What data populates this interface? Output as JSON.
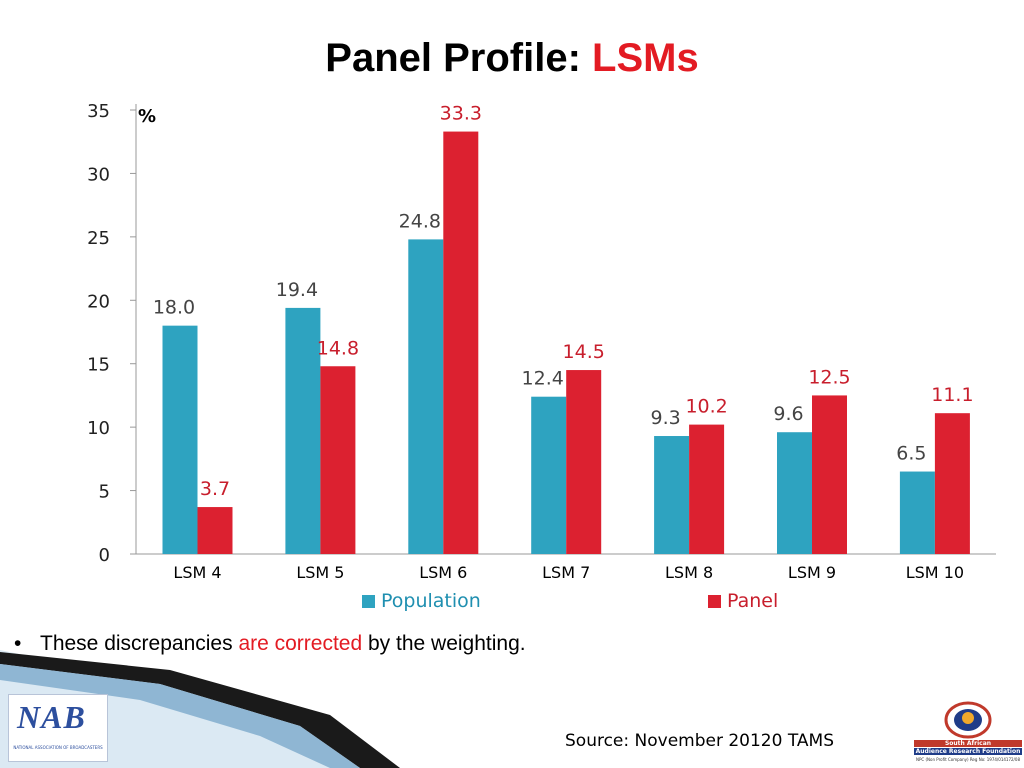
{
  "title": {
    "main": "Panel Profile: ",
    "accent": "LSMs"
  },
  "chart_data": {
    "type": "bar",
    "unit_label": "%",
    "categories": [
      "LSM 4",
      "LSM 5",
      "LSM 6",
      "LSM 7",
      "LSM 8",
      "LSM 9",
      "LSM 10"
    ],
    "series": [
      {
        "name": "Population",
        "color": "#2ea3c0",
        "values": [
          18.0,
          19.4,
          24.8,
          12.4,
          9.3,
          9.6,
          6.5
        ],
        "labels": [
          "18.0",
          "19.4",
          "24.8",
          "12.4",
          "9.3",
          "9.6",
          "6.5"
        ]
      },
      {
        "name": "Panel",
        "color": "#dc2130",
        "values": [
          3.7,
          14.8,
          33.3,
          14.5,
          10.2,
          12.5,
          11.1
        ],
        "labels": [
          "3.7",
          "14.8",
          "33.3",
          "14.5",
          "10.2",
          "12.5",
          "11.1"
        ]
      }
    ],
    "ylim": [
      0,
      35
    ],
    "yticks": [
      "0",
      "5",
      "10",
      "15",
      "20",
      "25",
      "30",
      "35"
    ],
    "grid": false,
    "legend_position": "bottom"
  },
  "legend": {
    "population": "Population",
    "panel": "Panel"
  },
  "bullet": {
    "before": "These discrepancies ",
    "highlight": "are corrected",
    "after": " by the weighting."
  },
  "source": "Source: November 20120 TAMS",
  "logos": {
    "nab_mark": "NAB",
    "nab_text": "NATIONAL ASSOCIATION OF BROADCASTERS",
    "saarf_line1": "South African",
    "saarf_line2": "Audience Research Foundation",
    "saarf_line3": "NPC (Non Profit Company) Reg No: 1974/014172/08"
  }
}
